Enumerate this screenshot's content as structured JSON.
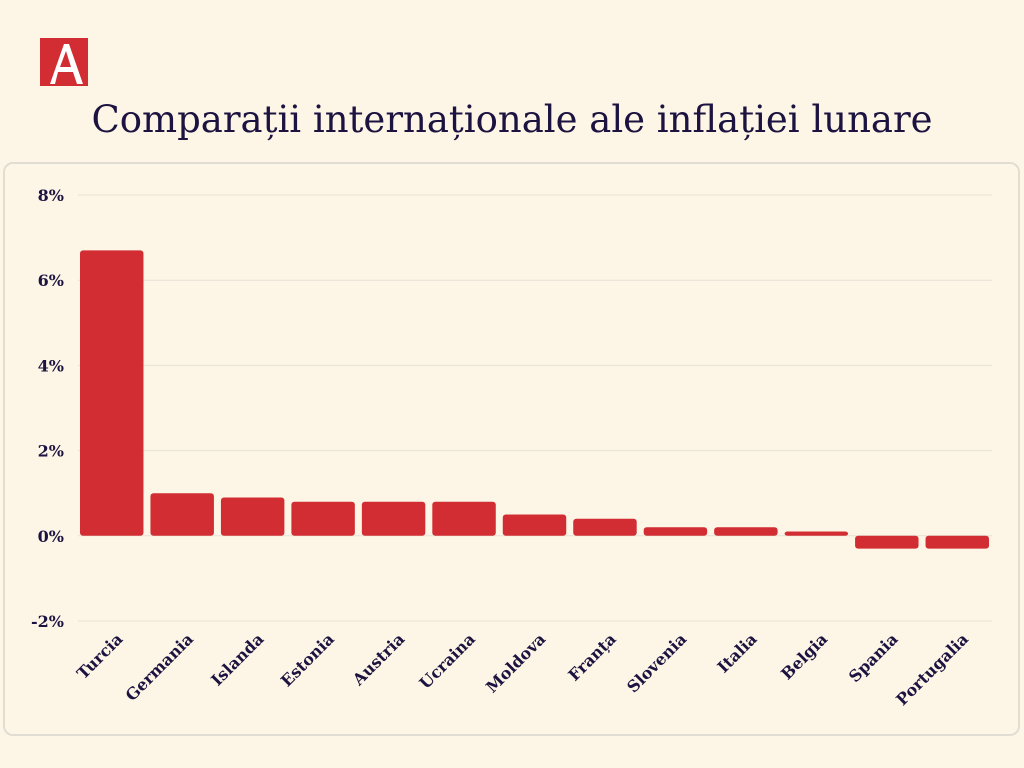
{
  "brand": {
    "logo_icon": "letter-a-logo",
    "accent_color": "#d22d33"
  },
  "chart_data": {
    "type": "bar",
    "title": "Comparații internaționale ale inflației lunare",
    "xlabel": "",
    "ylabel": "",
    "categories": [
      "Turcia",
      "Germania",
      "Islanda",
      "Estonia",
      "Austria",
      "Ucraina",
      "Moldova",
      "Franța",
      "Slovenia",
      "Italia",
      "Belgia",
      "Spania",
      "Portugalia"
    ],
    "values": [
      6.7,
      1.0,
      0.9,
      0.8,
      0.8,
      0.8,
      0.5,
      0.4,
      0.2,
      0.2,
      0.1,
      -0.3,
      -0.3
    ],
    "ylim": [
      -2,
      8
    ],
    "yticks": [
      8,
      6,
      4,
      2,
      0,
      -2
    ],
    "ytick_labels": [
      "8%",
      "6%",
      "4%",
      "2%",
      "0%",
      "-2%"
    ],
    "bar_color": "#d22d33",
    "grid": true,
    "legend": "none"
  }
}
